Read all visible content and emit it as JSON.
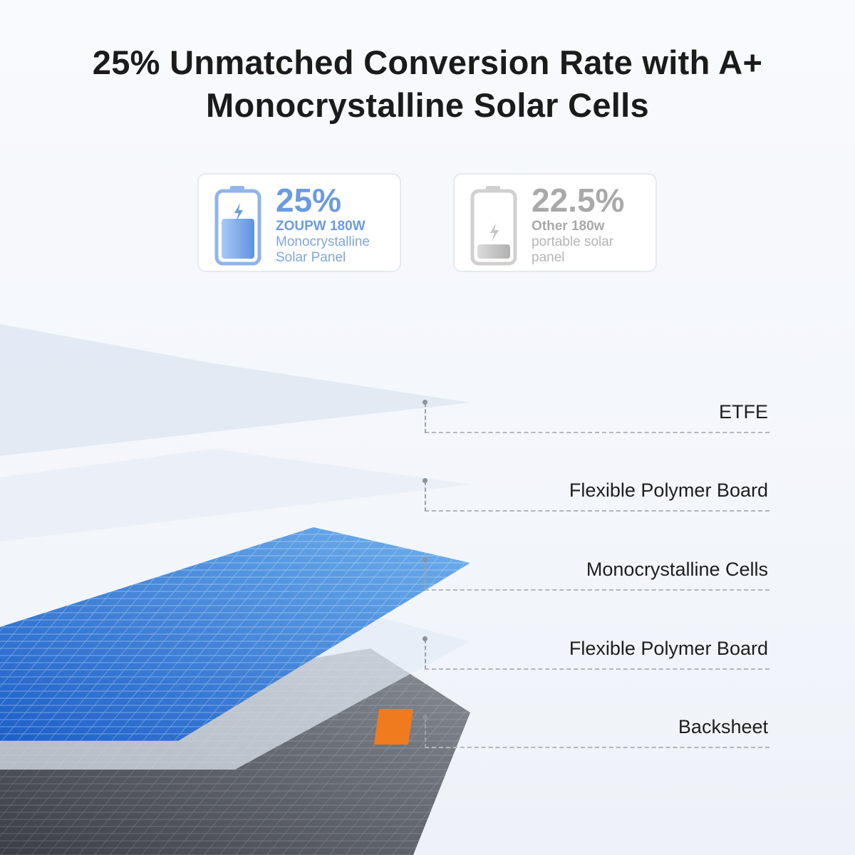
{
  "title_line1": "25% Unmatched Conversion Rate with A+",
  "title_line2": "Monocrystalline Solar Cells",
  "cards": [
    {
      "percent": "25%",
      "brand": "ZOUPW 180W",
      "desc1": "Monocrystalline",
      "desc2": "Solar Panel",
      "battery_level": 0.6,
      "color": "#6b9be0"
    },
    {
      "percent": "22.5%",
      "brand": "Other 180w",
      "desc1": "portable solar",
      "desc2": "panel",
      "battery_level": 0.2,
      "color": "#a9a9a9"
    }
  ],
  "layers": [
    "ETFE",
    "Flexible Polymer Board",
    "Monocrystalline Cells",
    "Flexible Polymer Board",
    "Backsheet"
  ],
  "accent_orange": "#f07a1e"
}
